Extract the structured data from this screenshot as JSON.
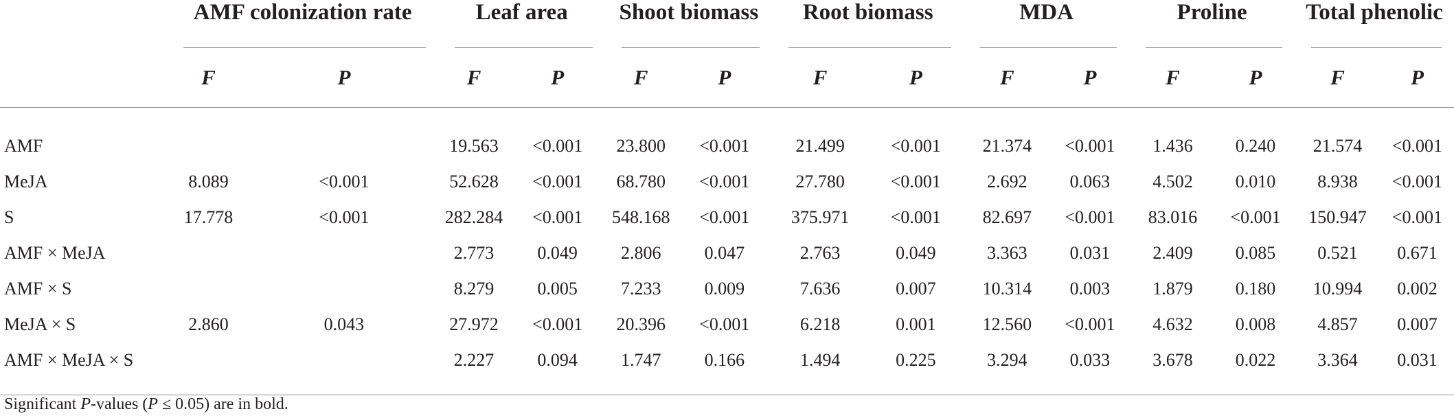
{
  "groups": [
    "AMF colonization rate",
    "Leaf area",
    "Shoot biomass",
    "Root biomass",
    "MDA",
    "Proline",
    "Total phenolic"
  ],
  "subheaders": {
    "f": "F",
    "p": "P"
  },
  "rows": [
    {
      "label": "AMF",
      "cells": [
        {
          "f": "",
          "p": "",
          "sig": false
        },
        {
          "f": "19.563",
          "p": "<0.001",
          "sig": true
        },
        {
          "f": "23.800",
          "p": "<0.001",
          "sig": true
        },
        {
          "f": "21.499",
          "p": "<0.001",
          "sig": true
        },
        {
          "f": "21.374",
          "p": "<0.001",
          "sig": true
        },
        {
          "f": "1.436",
          "p": "0.240",
          "sig": false
        },
        {
          "f": "21.574",
          "p": "<0.001",
          "sig": true
        }
      ]
    },
    {
      "label": "MeJA",
      "cells": [
        {
          "f": "8.089",
          "p": "<0.001",
          "sig": true
        },
        {
          "f": "52.628",
          "p": "<0.001",
          "sig": true
        },
        {
          "f": "68.780",
          "p": "<0.001",
          "sig": true
        },
        {
          "f": "27.780",
          "p": "<0.001",
          "sig": true
        },
        {
          "f": "2.692",
          "p": "0.063",
          "sig": false
        },
        {
          "f": "4.502",
          "p": "0.010",
          "sig": true
        },
        {
          "f": "8.938",
          "p": "<0.001",
          "sig": true
        }
      ]
    },
    {
      "label": "S",
      "cells": [
        {
          "f": "17.778",
          "p": "<0.001",
          "sig": true
        },
        {
          "f": "282.284",
          "p": "<0.001",
          "sig": true
        },
        {
          "f": "548.168",
          "p": "<0.001",
          "sig": true
        },
        {
          "f": "375.971",
          "p": "<0.001",
          "sig": true
        },
        {
          "f": "82.697",
          "p": "<0.001",
          "sig": true
        },
        {
          "f": "83.016",
          "p": "<0.001",
          "sig": true
        },
        {
          "f": "150.947",
          "p": "<0.001",
          "sig": true
        }
      ]
    },
    {
      "label": "AMF × MeJA",
      "cells": [
        {
          "f": "",
          "p": "",
          "sig": false
        },
        {
          "f": "2.773",
          "p": "0.049",
          "sig": true
        },
        {
          "f": "2.806",
          "p": "0.047",
          "sig": true
        },
        {
          "f": "2.763",
          "p": "0.049",
          "sig": true
        },
        {
          "f": "3.363",
          "p": "0.031",
          "sig": true
        },
        {
          "f": "2.409",
          "p": "0.085",
          "sig": false
        },
        {
          "f": "0.521",
          "p": "0.671",
          "sig": false
        }
      ]
    },
    {
      "label": "AMF × S",
      "cells": [
        {
          "f": "",
          "p": "",
          "sig": false
        },
        {
          "f": "8.279",
          "p": "0.005",
          "sig": true
        },
        {
          "f": "7.233",
          "p": "0.009",
          "sig": true
        },
        {
          "f": "7.636",
          "p": "0.007",
          "sig": true
        },
        {
          "f": "10.314",
          "p": "0.003",
          "sig": true
        },
        {
          "f": "1.879",
          "p": "0.180",
          "sig": false
        },
        {
          "f": "10.994",
          "p": "0.002",
          "sig": true
        }
      ]
    },
    {
      "label": "MeJA × S",
      "cells": [
        {
          "f": "2.860",
          "p": "0.043",
          "sig": true
        },
        {
          "f": "27.972",
          "p": "<0.001",
          "sig": true
        },
        {
          "f": "20.396",
          "p": "<0.001",
          "sig": true
        },
        {
          "f": "6.218",
          "p": "0.001",
          "sig": true
        },
        {
          "f": "12.560",
          "p": "<0.001",
          "sig": true
        },
        {
          "f": "4.632",
          "p": "0.008",
          "sig": true
        },
        {
          "f": "4.857",
          "p": "0.007",
          "sig": true
        }
      ]
    },
    {
      "label": "AMF × MeJA × S",
      "cells": [
        {
          "f": "",
          "p": "",
          "sig": false
        },
        {
          "f": "2.227",
          "p": "0.094",
          "sig": false
        },
        {
          "f": "1.747",
          "p": "0.166",
          "sig": false
        },
        {
          "f": "1.494",
          "p": "0.225",
          "sig": false
        },
        {
          "f": "3.294",
          "p": "0.033",
          "sig": true
        },
        {
          "f": "3.678",
          "p": "0.022",
          "sig": true
        },
        {
          "f": "3.364",
          "p": "0.031",
          "sig": true
        }
      ]
    }
  ],
  "footnote": {
    "pre": "Significant ",
    "ital": "P",
    "mid": "-values (",
    "ital2": "P",
    "post": " ≤ 0.05) are in bold."
  }
}
